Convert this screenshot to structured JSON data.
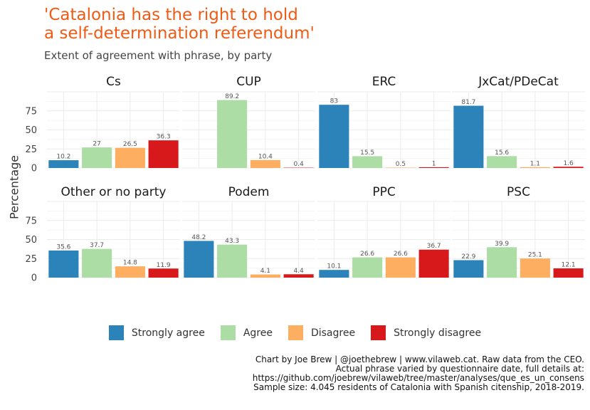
{
  "title_lines": [
    "'Catalonia has the right to hold",
    "a self-determination referendum'"
  ],
  "subtitle": "Extent of agreement with phrase, by party",
  "caption_lines": [
    "Chart by Joe Brew | @joethebrew | www.vilaweb.cat. Raw data from the CEO.",
    "Actual phrase varied by questionnaire date, full details at:",
    "https://github.com/joebrew/vilaweb/tree/master/analyses/que_es_un_consens",
    "Sample size: 4.045 residents of Catalonia with Spanish citenship, 2018-2019."
  ],
  "chart_data": {
    "type": "bar",
    "ylabel": "Percentage",
    "xlabel": "",
    "ylim": [
      0,
      100
    ],
    "yticks": [
      0,
      25,
      50,
      75
    ],
    "grid": true,
    "legend_position": "bottom",
    "categories": [
      "Strongly agree",
      "Agree",
      "Disagree",
      "Strongly disagree"
    ],
    "colors": [
      "#2B83BA",
      "#ABDDA4",
      "#FDAE61",
      "#D7191C"
    ],
    "facets": [
      {
        "name": "Cs",
        "values": [
          10.2,
          27,
          26.5,
          36.3
        ],
        "labels": [
          "10.2",
          "27",
          "26.5",
          "36.3"
        ]
      },
      {
        "name": "CUP",
        "values": [
          null,
          89.2,
          10.4,
          0.4
        ],
        "labels": [
          "",
          "89.2",
          "10.4",
          "0.4"
        ]
      },
      {
        "name": "ERC",
        "values": [
          83,
          15.5,
          0.5,
          1
        ],
        "labels": [
          "83",
          "15.5",
          "0.5",
          "1"
        ]
      },
      {
        "name": "JxCat/PDeCat",
        "values": [
          81.7,
          15.6,
          1.1,
          1.6
        ],
        "labels": [
          "81.7",
          "15.6",
          "1.1",
          "1.6"
        ]
      },
      {
        "name": "Other or no party",
        "values": [
          35.6,
          37.7,
          14.8,
          11.9
        ],
        "labels": [
          "35.6",
          "37.7",
          "14.8",
          "11.9"
        ]
      },
      {
        "name": "Podem",
        "values": [
          48.2,
          43.3,
          4.1,
          4.4
        ],
        "labels": [
          "48.2",
          "43.3",
          "4.1",
          "4.4"
        ]
      },
      {
        "name": "PPC",
        "values": [
          10.1,
          26.6,
          26.6,
          36.7
        ],
        "labels": [
          "10.1",
          "26.6",
          "26.6",
          "36.7"
        ]
      },
      {
        "name": "PSC",
        "values": [
          22.9,
          39.9,
          25.1,
          12.1
        ],
        "labels": [
          "22.9",
          "39.9",
          "25.1",
          "12.1"
        ]
      }
    ]
  }
}
